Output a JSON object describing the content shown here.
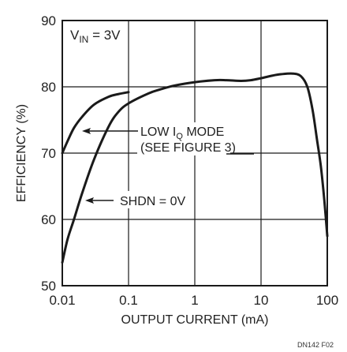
{
  "chart_data": {
    "type": "line",
    "x_scale": "log",
    "xlim": [
      0.01,
      100
    ],
    "ylim": [
      50,
      90
    ],
    "xticks": [
      "0.01",
      "0.1",
      "1",
      "10",
      "100"
    ],
    "yticks": [
      "50",
      "60",
      "70",
      "80",
      "90"
    ],
    "xlabel": "OUTPUT CURRENT (mA)",
    "ylabel": "EFFICIENCY (%)",
    "grid": true,
    "vin_label": {
      "main": "V",
      "sub": "IN",
      "rest": " = 3V"
    },
    "series": [
      {
        "name": "LOW IQ MODE",
        "color": "#1a1a1a",
        "points": [
          [
            0.01,
            70.0
          ],
          [
            0.012,
            71.8
          ],
          [
            0.015,
            73.8
          ],
          [
            0.02,
            75.5
          ],
          [
            0.03,
            77.3
          ],
          [
            0.05,
            78.5
          ],
          [
            0.07,
            78.9
          ],
          [
            0.1,
            79.2
          ]
        ]
      },
      {
        "name": "SHDN = 0V",
        "color": "#1a1a1a",
        "points": [
          [
            0.01,
            53.5
          ],
          [
            0.012,
            57.0
          ],
          [
            0.015,
            60.0
          ],
          [
            0.02,
            64.0
          ],
          [
            0.03,
            69.0
          ],
          [
            0.05,
            74.0
          ],
          [
            0.07,
            76.2
          ],
          [
            0.1,
            77.5
          ],
          [
            0.2,
            79.0
          ],
          [
            0.3,
            79.6
          ],
          [
            0.5,
            80.2
          ],
          [
            1,
            80.7
          ],
          [
            2,
            81.0
          ],
          [
            3,
            81.0
          ],
          [
            5,
            80.9
          ],
          [
            7,
            81.0
          ],
          [
            10,
            81.3
          ],
          [
            15,
            81.7
          ],
          [
            20,
            81.9
          ],
          [
            30,
            82.0
          ],
          [
            40,
            81.6
          ],
          [
            50,
            80.0
          ],
          [
            60,
            76.5
          ],
          [
            70,
            72.0
          ],
          [
            80,
            68.0
          ],
          [
            90,
            63.0
          ],
          [
            100,
            57.5
          ]
        ]
      }
    ],
    "annotations": [
      {
        "main": "LOW I",
        "sub": "Q",
        "rest": " MODE",
        "line2": "(SEE FIGURE 3)"
      },
      {
        "text": "SHDN = 0V"
      }
    ],
    "figure_id": "DN142 F02"
  }
}
